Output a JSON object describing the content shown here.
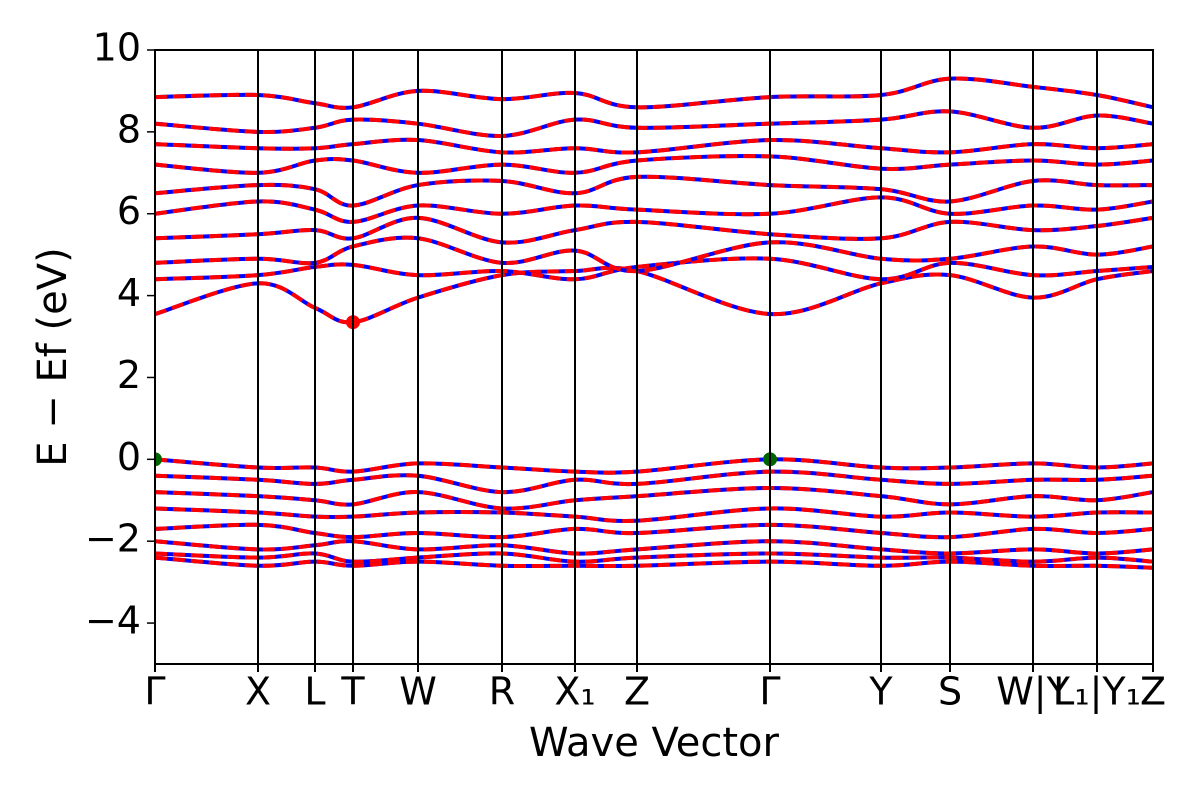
{
  "chart_data": {
    "type": "band_structure",
    "xlabel": "Wave Vector",
    "ylabel": "E − Ef (eV)",
    "x": [
      0,
      103,
      160,
      198,
      263,
      347,
      420,
      482,
      615,
      726,
      795,
      878,
      942,
      998
    ],
    "xlim": [
      0,
      998
    ],
    "xticks": [
      {
        "value": 0,
        "label": "Γ"
      },
      {
        "value": 103,
        "label": "X"
      },
      {
        "value": 160,
        "label": "L"
      },
      {
        "value": 198,
        "label": "T"
      },
      {
        "value": 263,
        "label": "W"
      },
      {
        "value": 347,
        "label": "R"
      },
      {
        "value": 420,
        "label": "X₁"
      },
      {
        "value": 482,
        "label": "Z"
      },
      {
        "value": 615,
        "label": "Γ"
      },
      {
        "value": 726,
        "label": "Y"
      },
      {
        "value": 795,
        "label": "S"
      },
      {
        "value": 878,
        "label": "W|Y"
      },
      {
        "value": 942,
        "label": "L₁|Y₁"
      },
      {
        "value": 998,
        "label": "Z"
      }
    ],
    "ylim": [
      -5,
      10
    ],
    "yticks": [
      {
        "value": -4,
        "label": "−4"
      },
      {
        "value": -2,
        "label": "−2"
      },
      0,
      2,
      4,
      6,
      8,
      10
    ],
    "spin_colors": [
      "#0000ff",
      "#ff0000"
    ],
    "bands": [
      [
        3.55,
        4.3,
        3.7,
        3.35,
        3.95,
        4.5,
        4.6,
        4.6,
        3.55,
        4.3,
        4.5,
        3.95,
        4.4,
        4.6
      ],
      [
        4.4,
        4.5,
        4.7,
        4.75,
        4.5,
        4.6,
        4.4,
        4.7,
        4.9,
        4.4,
        4.8,
        4.5,
        4.6,
        4.7
      ],
      [
        4.8,
        4.9,
        4.8,
        5.2,
        5.4,
        4.8,
        5.1,
        4.6,
        5.3,
        4.9,
        4.9,
        5.2,
        5.0,
        5.2
      ],
      [
        5.4,
        5.5,
        5.6,
        5.4,
        5.9,
        5.3,
        5.6,
        5.8,
        5.5,
        5.4,
        5.8,
        5.6,
        5.7,
        5.9
      ],
      [
        6.0,
        6.3,
        6.1,
        5.8,
        6.2,
        6.0,
        6.2,
        6.1,
        6.0,
        6.4,
        6.0,
        6.2,
        6.1,
        6.3
      ],
      [
        6.5,
        6.7,
        6.6,
        6.2,
        6.7,
        6.8,
        6.5,
        6.9,
        6.7,
        6.6,
        6.3,
        6.8,
        6.7,
        6.7
      ],
      [
        7.2,
        7.0,
        7.3,
        7.3,
        7.0,
        7.2,
        7.0,
        7.3,
        7.4,
        7.1,
        7.2,
        7.3,
        7.2,
        7.3
      ],
      [
        7.7,
        7.6,
        7.6,
        7.7,
        7.8,
        7.5,
        7.6,
        7.5,
        7.8,
        7.6,
        7.5,
        7.7,
        7.6,
        7.7
      ],
      [
        8.2,
        8.0,
        8.1,
        8.3,
        8.2,
        7.9,
        8.3,
        8.1,
        8.2,
        8.3,
        8.5,
        8.1,
        8.4,
        8.2
      ],
      [
        8.85,
        8.9,
        8.7,
        8.6,
        9.0,
        8.8,
        8.95,
        8.6,
        8.85,
        8.9,
        9.3,
        9.1,
        8.9,
        8.6
      ],
      [
        0,
        -0.2,
        -0.2,
        -0.3,
        -0.1,
        -0.2,
        -0.3,
        -0.3,
        0,
        -0.2,
        -0.2,
        -0.1,
        -0.2,
        -0.1
      ],
      [
        -0.4,
        -0.5,
        -0.6,
        -0.5,
        -0.4,
        -0.8,
        -0.5,
        -0.6,
        -0.3,
        -0.5,
        -0.6,
        -0.5,
        -0.5,
        -0.4
      ],
      [
        -0.8,
        -0.9,
        -1.0,
        -1.1,
        -0.8,
        -1.2,
        -1.0,
        -0.9,
        -0.7,
        -0.9,
        -1.1,
        -0.9,
        -1.0,
        -0.8
      ],
      [
        -1.2,
        -1.3,
        -1.4,
        -1.4,
        -1.3,
        -1.3,
        -1.4,
        -1.5,
        -1.2,
        -1.4,
        -1.3,
        -1.4,
        -1.3,
        -1.3
      ],
      [
        -1.7,
        -1.6,
        -1.8,
        -1.9,
        -1.8,
        -1.9,
        -1.7,
        -1.8,
        -1.6,
        -1.8,
        -1.9,
        -1.7,
        -1.8,
        -1.7
      ],
      [
        -2.0,
        -2.2,
        -2.1,
        -2.0,
        -2.2,
        -2.1,
        -2.3,
        -2.2,
        -2.0,
        -2.2,
        -2.3,
        -2.2,
        -2.3,
        -2.2
      ],
      [
        -2.3,
        -2.4,
        -2.3,
        -2.5,
        -2.4,
        -2.3,
        -2.5,
        -2.4,
        -2.3,
        -2.4,
        -2.4,
        -2.5,
        -2.4,
        -2.5
      ],
      [
        -2.4,
        -2.6,
        -2.5,
        -2.6,
        -2.5,
        -2.6,
        -2.6,
        -2.6,
        -2.5,
        -2.6,
        -2.5,
        -2.6,
        -2.6,
        -2.65
      ]
    ],
    "cbm": {
      "x": [
        198
      ],
      "y": [
        3.35
      ],
      "color": "#ff0000"
    },
    "vbm": {
      "x": [
        0,
        615
      ],
      "y": [
        0,
        0
      ],
      "color": "#006400"
    }
  }
}
